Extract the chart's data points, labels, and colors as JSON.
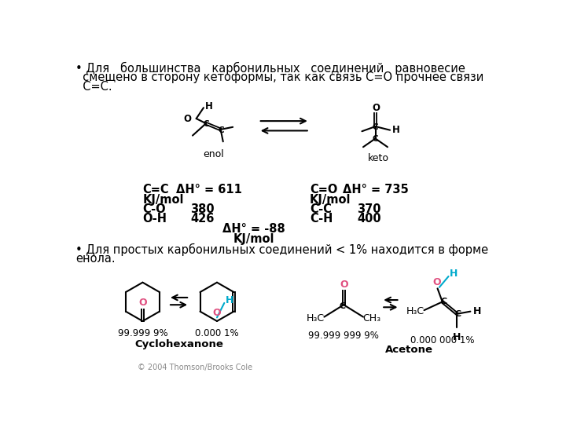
{
  "bg_color": "#ffffff",
  "line1": "• Для   большинства   карбонильных   соединений   равновесие",
  "line2": "  смещено в сторону кетоформы, так как связь C=O прочнее связи",
  "line3": "  C=C.",
  "enol_label": "enol",
  "keto_label": "keto",
  "lbl_cc": "C=C",
  "lbl_dH_cc": "ΔH° = 611",
  "lbl_kj1": "KJ/mol",
  "lbl_co_bond": "C-O",
  "lbl_co_val": "380",
  "lbl_oh": "O-H",
  "lbl_oh_val": "426",
  "lbl_co": "C=O",
  "lbl_dH_co": "ΔH° = 735",
  "lbl_kj2": "KJ/mol",
  "lbl_cc2": "C-C",
  "lbl_cc2_val": "370",
  "lbl_ch": "C-H",
  "lbl_ch_val": "400",
  "lbl_dH_tot": "ΔH° = -88",
  "lbl_kj3": "KJ/mol",
  "bullet2_1": "• Для простых карбонильных соединений < 1% находится в форме",
  "bullet2_2": "енола.",
  "cyc_keto_pct": "99.999 9%",
  "cyc_enol_pct": "0.000 1%",
  "ace_keto_pct": "99.999 999 9%",
  "ace_enol_pct": "0.000 000 1%",
  "lbl_cyclohexanone": "Cyclohexanone",
  "lbl_acetone": "Acetone",
  "copyright": "© 2004 Thomson/Brooks Cole",
  "color_O": "#e05080",
  "color_H": "#00aacc",
  "color_black": "#000000",
  "color_gray": "#888888"
}
